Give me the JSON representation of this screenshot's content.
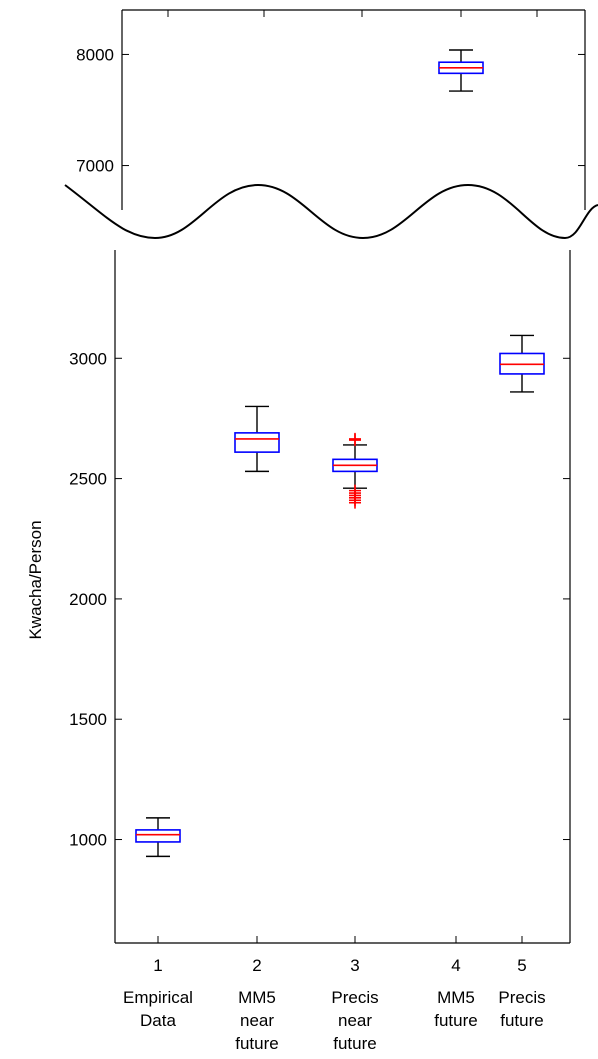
{
  "chart_data": {
    "type": "box",
    "title": "",
    "xlabel": "",
    "ylabel": "Kwacha/Person",
    "broken_axis": true,
    "grid": false,
    "colors": {
      "box": "#0000ff",
      "median": "#ff0000",
      "whisker": "#000000",
      "outlier": "#ff0000"
    },
    "categories": [
      {
        "tick": "1",
        "lines": [
          "Empirical",
          "Data"
        ]
      },
      {
        "tick": "2",
        "lines": [
          "MM5",
          "near",
          "future"
        ]
      },
      {
        "tick": "3",
        "lines": [
          "Precis",
          "near",
          "future"
        ]
      },
      {
        "tick": "4",
        "lines": [
          "MM5",
          "future"
        ]
      },
      {
        "tick": "5",
        "lines": [
          "Precis",
          "future"
        ]
      }
    ],
    "upper_panel": {
      "ylim": [
        6600,
        8400
      ],
      "yticks": [
        "7000",
        "8000"
      ],
      "boxes": [
        {
          "cat": 4,
          "whisker_low": 7670,
          "q1": 7830,
          "median": 7880,
          "q3": 7930,
          "whisker_high": 8040,
          "outliers": []
        }
      ]
    },
    "lower_panel": {
      "ylim": [
        570,
        3450
      ],
      "yticks": [
        "1000",
        "1500",
        "2000",
        "2500",
        "3000"
      ],
      "boxes": [
        {
          "cat": 1,
          "whisker_low": 930,
          "q1": 990,
          "median": 1020,
          "q3": 1040,
          "whisker_high": 1090,
          "outliers": []
        },
        {
          "cat": 2,
          "whisker_low": 2530,
          "q1": 2610,
          "median": 2665,
          "q3": 2690,
          "whisker_high": 2800,
          "outliers": []
        },
        {
          "cat": 3,
          "whisker_low": 2460,
          "q1": 2530,
          "median": 2555,
          "q3": 2580,
          "whisker_high": 2640,
          "outliers": [
            2400,
            2410,
            2420,
            2430,
            2440,
            2450,
            2660,
            2665
          ]
        },
        {
          "cat": 5,
          "whisker_low": 2860,
          "q1": 2935,
          "median": 2975,
          "q3": 3020,
          "whisker_high": 3095,
          "outliers": []
        }
      ]
    }
  }
}
